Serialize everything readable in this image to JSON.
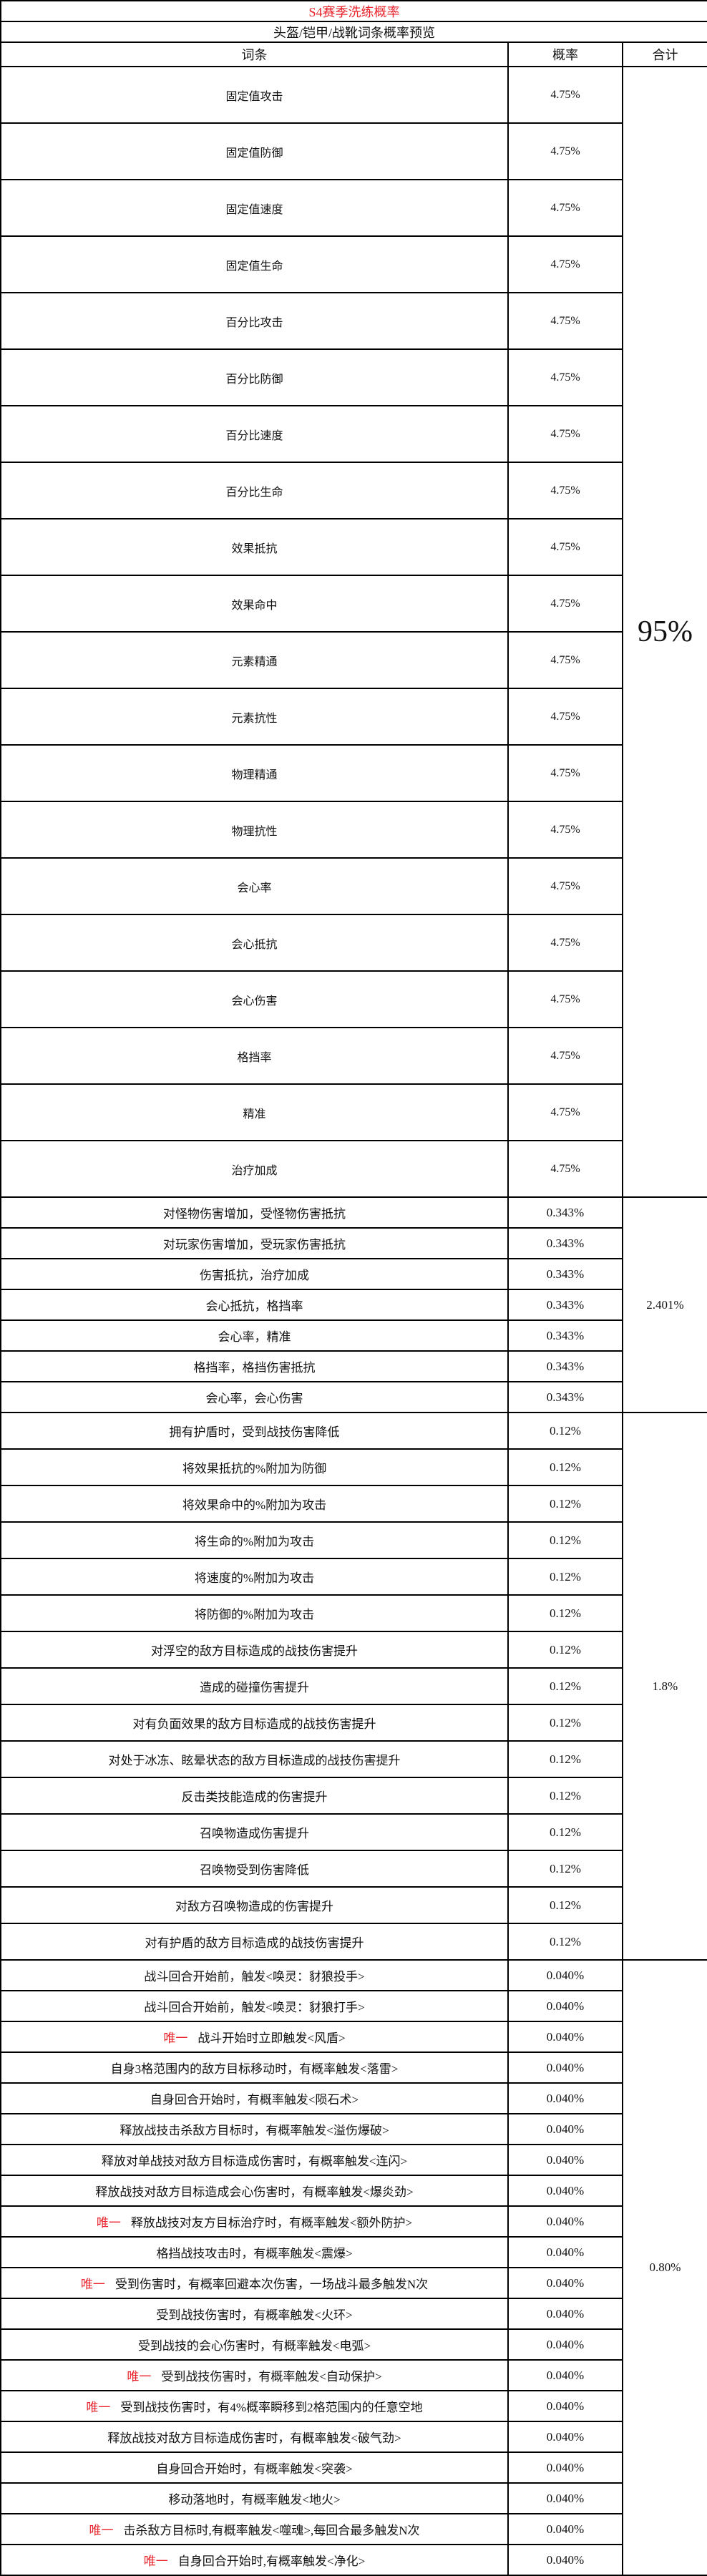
{
  "title": "S4赛季洗练概率",
  "subtitle": "头盔/铠甲/战靴词条概率预览",
  "headers": {
    "entry": "词条",
    "rate": "概率",
    "total": "合计"
  },
  "colors": {
    "title": "#e8232b",
    "unique_tag": "#e8232b",
    "border": "#000000"
  },
  "sections": [
    {
      "total": "95%",
      "rows": [
        {
          "entry": "固定值攻击",
          "rate": "4.75%"
        },
        {
          "entry": "固定值防御",
          "rate": "4.75%"
        },
        {
          "entry": "固定值速度",
          "rate": "4.75%"
        },
        {
          "entry": "固定值生命",
          "rate": "4.75%"
        },
        {
          "entry": "百分比攻击",
          "rate": "4.75%"
        },
        {
          "entry": "百分比防御",
          "rate": "4.75%"
        },
        {
          "entry": "百分比速度",
          "rate": "4.75%"
        },
        {
          "entry": "百分比生命",
          "rate": "4.75%"
        },
        {
          "entry": "效果抵抗",
          "rate": "4.75%"
        },
        {
          "entry": "效果命中",
          "rate": "4.75%"
        },
        {
          "entry": "元素精通",
          "rate": "4.75%"
        },
        {
          "entry": "元素抗性",
          "rate": "4.75%"
        },
        {
          "entry": "物理精通",
          "rate": "4.75%"
        },
        {
          "entry": "物理抗性",
          "rate": "4.75%"
        },
        {
          "entry": "会心率",
          "rate": "4.75%"
        },
        {
          "entry": "会心抵抗",
          "rate": "4.75%"
        },
        {
          "entry": "会心伤害",
          "rate": "4.75%"
        },
        {
          "entry": "格挡率",
          "rate": "4.75%"
        },
        {
          "entry": "精准",
          "rate": "4.75%"
        },
        {
          "entry": "治疗加成",
          "rate": "4.75%"
        }
      ]
    },
    {
      "total": "2.401%",
      "rows": [
        {
          "entry": "对怪物伤害增加，受怪物伤害抵抗",
          "rate": "0.343%"
        },
        {
          "entry": "对玩家伤害增加，受玩家伤害抵抗",
          "rate": "0.343%"
        },
        {
          "entry": "伤害抵抗，治疗加成",
          "rate": "0.343%"
        },
        {
          "entry": "会心抵抗，格挡率",
          "rate": "0.343%"
        },
        {
          "entry": "会心率，精准",
          "rate": "0.343%"
        },
        {
          "entry": "格挡率，格挡伤害抵抗",
          "rate": "0.343%"
        },
        {
          "entry": "会心率，会心伤害",
          "rate": "0.343%"
        }
      ]
    },
    {
      "total": "1.8%",
      "rows": [
        {
          "entry": "拥有护盾时，受到战技伤害降低",
          "rate": "0.12%"
        },
        {
          "entry": "将效果抵抗的%附加为防御",
          "rate": "0.12%"
        },
        {
          "entry": "将效果命中的%附加为攻击",
          "rate": "0.12%"
        },
        {
          "entry": "将生命的%附加为攻击",
          "rate": "0.12%"
        },
        {
          "entry": "将速度的%附加为攻击",
          "rate": "0.12%"
        },
        {
          "entry": "将防御的%附加为攻击",
          "rate": "0.12%"
        },
        {
          "entry": "对浮空的敌方目标造成的战技伤害提升",
          "rate": "0.12%"
        },
        {
          "entry": "造成的碰撞伤害提升",
          "rate": "0.12%"
        },
        {
          "entry": "对有负面效果的敌方目标造成的战技伤害提升",
          "rate": "0.12%"
        },
        {
          "entry": "对处于冰冻、眩晕状态的敌方目标造成的战技伤害提升",
          "rate": "0.12%"
        },
        {
          "entry": "反击类技能造成的伤害提升",
          "rate": "0.12%"
        },
        {
          "entry": "召唤物造成伤害提升",
          "rate": "0.12%"
        },
        {
          "entry": "召唤物受到伤害降低",
          "rate": "0.12%"
        },
        {
          "entry": "对敌方召唤物造成的伤害提升",
          "rate": "0.12%"
        },
        {
          "entry": "对有护盾的敌方目标造成的战技伤害提升",
          "rate": "0.12%"
        }
      ]
    },
    {
      "total": "0.80%",
      "rows": [
        {
          "tag": "",
          "entry": "战斗回合开始前，触发<唤灵：豺狼投手>",
          "rate": "0.040%"
        },
        {
          "tag": "",
          "entry": "战斗回合开始前，触发<唤灵：豺狼打手>",
          "rate": "0.040%"
        },
        {
          "tag": "唯一",
          "entry": "战斗开始时立即触发<风盾>",
          "rate": "0.040%"
        },
        {
          "tag": "",
          "entry": "自身3格范围内的敌方目标移动时，有概率触发<落雷>",
          "rate": "0.040%"
        },
        {
          "tag": "",
          "entry": "自身回合开始时，有概率触发<陨石术>",
          "rate": "0.040%"
        },
        {
          "tag": "",
          "entry": "释放战技击杀敌方目标时，有概率触发<溢伤爆破>",
          "rate": "0.040%"
        },
        {
          "tag": "",
          "entry": "释放对单战技对敌方目标造成伤害时，有概率触发<连闪>",
          "rate": "0.040%"
        },
        {
          "tag": "",
          "entry": "释放战技对敌方目标造成会心伤害时，有概率触发<爆炎劲>",
          "rate": "0.040%"
        },
        {
          "tag": "唯一",
          "entry": "释放战技对友方目标治疗时，有概率触发<额外防护>",
          "rate": "0.040%"
        },
        {
          "tag": "",
          "entry": "格挡战技攻击时，有概率触发<震爆>",
          "rate": "0.040%"
        },
        {
          "tag": "唯一",
          "entry": "受到伤害时，有概率回避本次伤害，一场战斗最多触发N次",
          "rate": "0.040%"
        },
        {
          "tag": "",
          "entry": "受到战技伤害时，有概率触发<火环>",
          "rate": "0.040%"
        },
        {
          "tag": "",
          "entry": "受到战技的会心伤害时，有概率触发<电弧>",
          "rate": "0.040%"
        },
        {
          "tag": "唯一",
          "entry": "受到战技伤害时，有概率触发<自动保护>",
          "rate": "0.040%"
        },
        {
          "tag": "唯一",
          "entry": "受到战技伤害时，有4%概率瞬移到2格范围内的任意空地",
          "rate": "0.040%"
        },
        {
          "tag": "",
          "entry": "释放战技对敌方目标造成伤害时，有概率触发<破气劲>",
          "rate": "0.040%"
        },
        {
          "tag": "",
          "entry": "自身回合开始时，有概率触发<突袭>",
          "rate": "0.040%"
        },
        {
          "tag": "",
          "entry": "移动落地时，有概率触发<地火>",
          "rate": "0.040%"
        },
        {
          "tag": "唯一",
          "entry": "击杀敌方目标时,有概率触发<噬魂>,每回合最多触发N次",
          "rate": "0.040%"
        },
        {
          "tag": "唯一",
          "entry": "自身回合开始时,有概率触发<净化>",
          "rate": "0.040%"
        }
      ]
    }
  ]
}
